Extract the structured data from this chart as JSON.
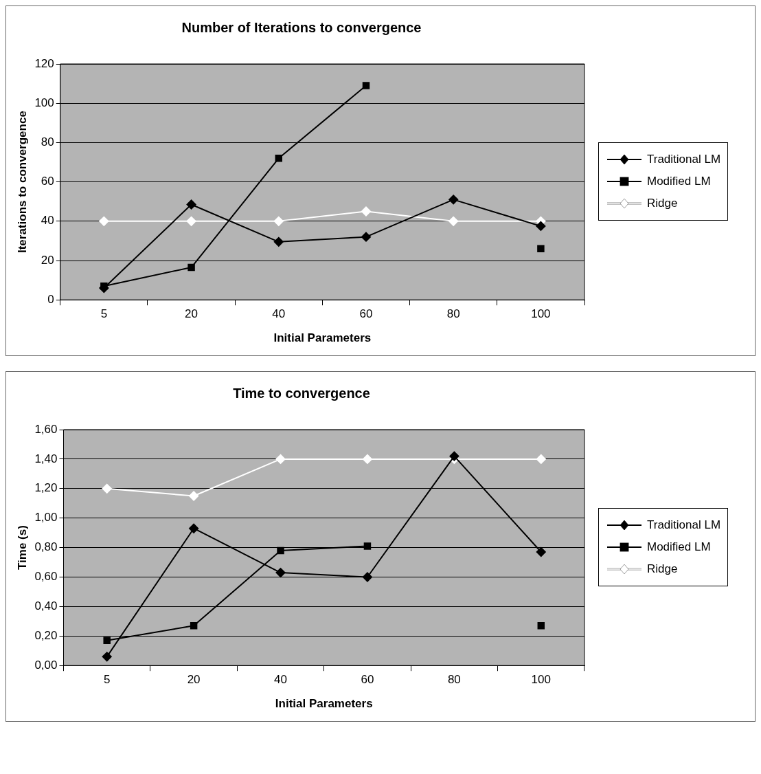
{
  "chart_data": [
    {
      "type": "line",
      "title": "Number of Iterations to convergence",
      "xlabel": "Initial Parameters",
      "ylabel": "Iterations to convergence",
      "categories": [
        "5",
        "20",
        "40",
        "60",
        "80",
        "100"
      ],
      "ylim": [
        0,
        120
      ],
      "yticks": [
        0,
        20,
        40,
        60,
        80,
        100,
        120
      ],
      "grid": "y",
      "legend": "right",
      "series": [
        {
          "name": "Traditional LM",
          "color": "#000000",
          "marker": "diamond",
          "values": [
            6,
            48.5,
            29.5,
            32,
            51,
            37.5
          ]
        },
        {
          "name": "Modified LM",
          "color": "#000000",
          "marker": "square",
          "values": [
            7,
            16.5,
            72,
            109,
            null,
            26
          ]
        },
        {
          "name": "Ridge",
          "color": "#ffffff",
          "marker": "diamond",
          "values": [
            40,
            40,
            40,
            45,
            40,
            40
          ]
        }
      ]
    },
    {
      "type": "line",
      "title": "Time to convergence",
      "xlabel": "Initial Parameters",
      "ylabel": "Time (s)",
      "categories": [
        "5",
        "20",
        "40",
        "60",
        "80",
        "100"
      ],
      "ylim": [
        0,
        1.6
      ],
      "yticks": [
        {
          "value": 0,
          "label": "0,00"
        },
        {
          "value": 0.2,
          "label": "0,20"
        },
        {
          "value": 0.4,
          "label": "0,40"
        },
        {
          "value": 0.6,
          "label": "0,60"
        },
        {
          "value": 0.8,
          "label": "0,80"
        },
        {
          "value": 1,
          "label": "1,00"
        },
        {
          "value": 1.2,
          "label": "1,20"
        },
        {
          "value": 1.4,
          "label": "1,40"
        },
        {
          "value": 1.6,
          "label": "1,60"
        }
      ],
      "grid": "y",
      "legend": "right",
      "series": [
        {
          "name": "Traditional LM",
          "color": "#000000",
          "marker": "diamond",
          "values": [
            0.06,
            0.93,
            0.63,
            0.6,
            1.42,
            0.77
          ]
        },
        {
          "name": "Modified LM",
          "color": "#000000",
          "marker": "square",
          "values": [
            0.17,
            0.27,
            0.78,
            0.81,
            null,
            0.27
          ]
        },
        {
          "name": "Ridge",
          "color": "#ffffff",
          "marker": "diamond",
          "values": [
            1.2,
            1.15,
            1.4,
            1.4,
            1.4,
            1.4
          ]
        }
      ]
    }
  ]
}
